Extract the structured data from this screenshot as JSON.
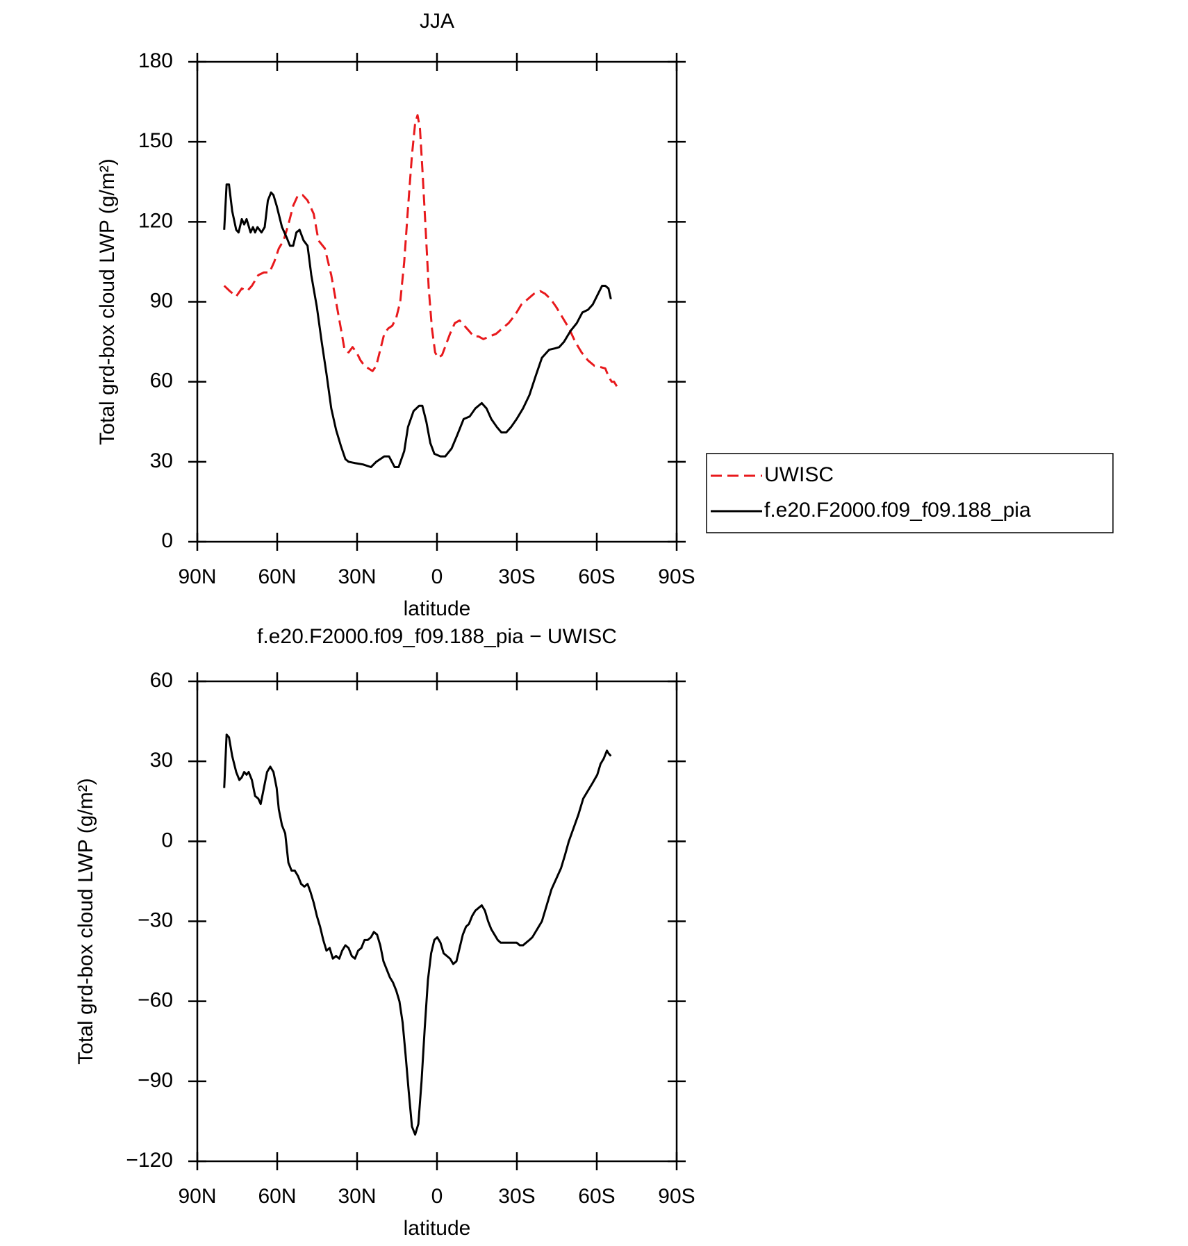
{
  "chart_data": [
    {
      "type": "line",
      "title": "JJA",
      "x_label": "latitude",
      "y_label": "Total grd-box cloud LWP (g/m²)",
      "xlim": [
        90,
        -90
      ],
      "xticks": [
        {
          "value": 90,
          "label": "90N"
        },
        {
          "value": 60,
          "label": "60N"
        },
        {
          "value": 30,
          "label": "30N"
        },
        0,
        {
          "value": -30,
          "label": "30S"
        },
        {
          "value": -60,
          "label": "60S"
        },
        {
          "value": -90,
          "label": "90S"
        }
      ],
      "ylim": [
        0,
        180
      ],
      "yticks": [
        0,
        30,
        60,
        90,
        120,
        150,
        180
      ],
      "legend": "right",
      "series": [
        {
          "name": "UWISC",
          "color": "#e8191c",
          "dashed": true,
          "x": [
            79.9,
            77.8,
            75.4,
            73.3,
            71.3,
            69.5,
            67.1,
            65.0,
            62.9,
            61.1,
            59.4,
            57.6,
            55.8,
            54.0,
            52.2,
            50.4,
            48.6,
            46.3,
            44.5,
            42.1,
            39.7,
            37.9,
            36.1,
            34.7,
            33.2,
            31.7,
            30.2,
            28.7,
            27.2,
            25.7,
            24.2,
            22.8,
            21.3,
            19.8,
            18.3,
            16.8,
            15.3,
            13.8,
            12.3,
            10.9,
            9.4,
            8.2,
            7.3,
            6.4,
            5.5,
            4.3,
            3.1,
            1.9,
            0.7,
            -0.4,
            -1.9,
            -3.4,
            -4.9,
            -6.7,
            -8.5,
            -10.3,
            -12.1,
            -13.8,
            -15.6,
            -17.4,
            -19.8,
            -22.2,
            -24.5,
            -26.9,
            -29.3,
            -31.7,
            -34.1,
            -36.4,
            -38.8,
            -40.6,
            -42.7,
            -44.8,
            -47.2,
            -49.6,
            -51.9,
            -54.3,
            -56.7,
            -59.1,
            -61.4,
            -63.2,
            -64.4,
            -65.6,
            -66.5,
            -67.7
          ],
          "values": [
            96,
            94,
            92,
            95,
            94,
            96,
            100,
            101,
            101,
            105,
            110,
            113,
            119,
            126,
            130,
            130,
            128,
            123,
            113,
            110,
            100,
            90,
            80,
            72,
            71,
            73,
            71,
            68,
            66,
            65,
            64,
            66,
            72,
            78,
            80,
            81,
            84,
            90,
            105,
            125,
            145,
            157,
            160,
            155,
            140,
            118,
            95,
            80,
            71,
            69,
            70,
            74,
            78,
            82,
            83,
            81,
            79,
            77,
            77,
            76,
            77,
            78,
            80,
            82,
            85,
            89,
            91,
            93,
            94,
            93,
            91,
            88,
            84,
            80,
            75,
            71,
            68,
            66,
            65.5,
            65,
            62,
            60,
            60,
            58
          ]
        },
        {
          "name": "f.e20.F2000.f09_f09.188_pia",
          "color": "#000000",
          "dashed": false,
          "x": [
            79.9,
            79.0,
            78.1,
            76.9,
            75.4,
            74.5,
            73.3,
            72.4,
            71.5,
            70.0,
            69.1,
            68.3,
            67.4,
            65.9,
            64.7,
            63.5,
            62.3,
            61.4,
            60.2,
            58.2,
            56.4,
            55.2,
            54.0,
            52.8,
            51.6,
            50.1,
            48.6,
            47.2,
            45.1,
            43.3,
            41.5,
            39.7,
            37.9,
            36.1,
            34.4,
            33.2,
            30.8,
            27.8,
            24.8,
            22.8,
            19.8,
            18.0,
            15.9,
            14.4,
            12.3,
            10.9,
            8.8,
            6.7,
            5.5,
            4.0,
            2.5,
            1.0,
            -1.3,
            -3.1,
            -5.5,
            -7.6,
            -10.0,
            -12.3,
            -14.4,
            -16.8,
            -18.6,
            -20.4,
            -22.5,
            -24.2,
            -26.0,
            -27.8,
            -29.9,
            -32.3,
            -34.7,
            -37.0,
            -39.4,
            -42.1,
            -44.2,
            -45.9,
            -47.7,
            -50.1,
            -52.5,
            -54.6,
            -56.7,
            -58.5,
            -60.5,
            -62.0,
            -63.2,
            -64.4,
            -65.3
          ],
          "values": [
            117,
            134,
            134,
            124,
            117,
            116,
            121,
            119,
            121,
            116,
            118,
            116,
            118,
            116,
            118,
            128,
            131,
            130,
            126,
            118,
            114,
            111,
            111,
            116,
            117,
            113,
            111,
            100,
            88,
            75,
            63,
            50,
            42,
            36,
            31,
            30,
            29.5,
            29,
            28,
            30,
            32,
            32,
            28,
            28,
            34,
            43,
            49,
            51,
            51,
            45,
            37,
            33,
            32,
            32,
            35,
            40,
            46,
            47,
            50,
            52,
            50,
            46,
            43,
            41,
            41,
            43,
            46,
            50,
            55,
            62,
            69,
            72,
            72.5,
            73,
            75,
            79,
            82,
            86,
            87,
            89,
            93,
            96,
            96,
            95,
            91
          ]
        }
      ]
    },
    {
      "type": "line",
      "title": "f.e20.F2000.f09_f09.188_pia − UWISC",
      "x_label": "latitude",
      "y_label": "Total grd-box cloud LWP (g/m²)",
      "xlim": [
        90,
        -90
      ],
      "xticks": [
        {
          "value": 90,
          "label": "90N"
        },
        {
          "value": 60,
          "label": "60N"
        },
        {
          "value": 30,
          "label": "30N"
        },
        0,
        {
          "value": -30,
          "label": "30S"
        },
        {
          "value": -60,
          "label": "60S"
        },
        {
          "value": -90,
          "label": "90S"
        }
      ],
      "ylim": [
        -120,
        60
      ],
      "yticks": [
        {
          "value": -120,
          "label": "−120"
        },
        {
          "value": -90,
          "label": "−90"
        },
        {
          "value": -60,
          "label": "−60"
        },
        {
          "value": -30,
          "label": "−30"
        },
        0,
        30,
        60
      ],
      "series": [
        {
          "color": "#000000",
          "dashed": false,
          "x": [
            79.9,
            79.0,
            78.1,
            76.9,
            75.4,
            74.2,
            73.3,
            72.4,
            71.5,
            70.7,
            69.5,
            68.3,
            67.1,
            66.2,
            65.0,
            63.8,
            62.6,
            61.4,
            60.2,
            59.4,
            58.2,
            57.0,
            55.8,
            54.6,
            53.4,
            52.2,
            51.0,
            49.8,
            48.6,
            47.5,
            46.3,
            45.1,
            43.9,
            42.7,
            41.5,
            40.3,
            39.1,
            37.9,
            36.7,
            35.6,
            34.4,
            33.2,
            32.0,
            30.8,
            29.6,
            28.4,
            27.2,
            26.0,
            24.8,
            23.7,
            22.5,
            21.3,
            20.1,
            18.9,
            17.7,
            16.5,
            15.3,
            14.1,
            12.9,
            11.8,
            10.6,
            9.4,
            8.2,
            7.0,
            5.8,
            4.6,
            3.4,
            2.2,
            1.0,
            -0.1,
            -1.3,
            -2.5,
            -3.7,
            -4.9,
            -6.1,
            -7.3,
            -8.5,
            -9.7,
            -10.9,
            -12.0,
            -13.2,
            -14.4,
            -15.6,
            -16.8,
            -18.0,
            -19.2,
            -20.4,
            -21.6,
            -22.8,
            -23.9,
            -25.1,
            -26.3,
            -27.5,
            -28.7,
            -29.9,
            -31.1,
            -32.3,
            -33.5,
            -34.7,
            -35.8,
            -37.0,
            -38.2,
            -39.4,
            -41.2,
            -43.0,
            -44.8,
            -46.6,
            -48.1,
            -49.5,
            -51.3,
            -53.1,
            -54.9,
            -56.7,
            -58.5,
            -60.2,
            -61.4,
            -62.6,
            -63.8,
            -64.4,
            -65.3
          ],
          "values": [
            20,
            40,
            39,
            32,
            26,
            23,
            24,
            26,
            25,
            26,
            23,
            17,
            16,
            14,
            20,
            26,
            28,
            26,
            20,
            12,
            6,
            3,
            -8,
            -11,
            -11,
            -13,
            -16,
            -17,
            -16,
            -19,
            -23,
            -28,
            -32,
            -37,
            -41,
            -40,
            -44,
            -43,
            -44,
            -41,
            -39,
            -40,
            -43,
            -44,
            -41,
            -40,
            -37,
            -37,
            -36,
            -34,
            -35,
            -39,
            -45,
            -48,
            -51,
            -53,
            -56,
            -60,
            -68,
            -80,
            -94,
            -107,
            -110,
            -106,
            -90,
            -70,
            -52,
            -42,
            -37,
            -36,
            -38,
            -42,
            -43,
            -44,
            -46,
            -45,
            -40,
            -35,
            -32,
            -31,
            -28,
            -26,
            -25,
            -24,
            -26,
            -30,
            -33,
            -35,
            -37,
            -38,
            -38,
            -38,
            -38,
            -38,
            -38,
            -39,
            -39,
            -38,
            -37,
            -36,
            -34,
            -32,
            -30,
            -24,
            -18,
            -14,
            -10,
            -5,
            0,
            5,
            10,
            16,
            19,
            22,
            25,
            29,
            31,
            34,
            33,
            32
          ]
        }
      ]
    }
  ]
}
